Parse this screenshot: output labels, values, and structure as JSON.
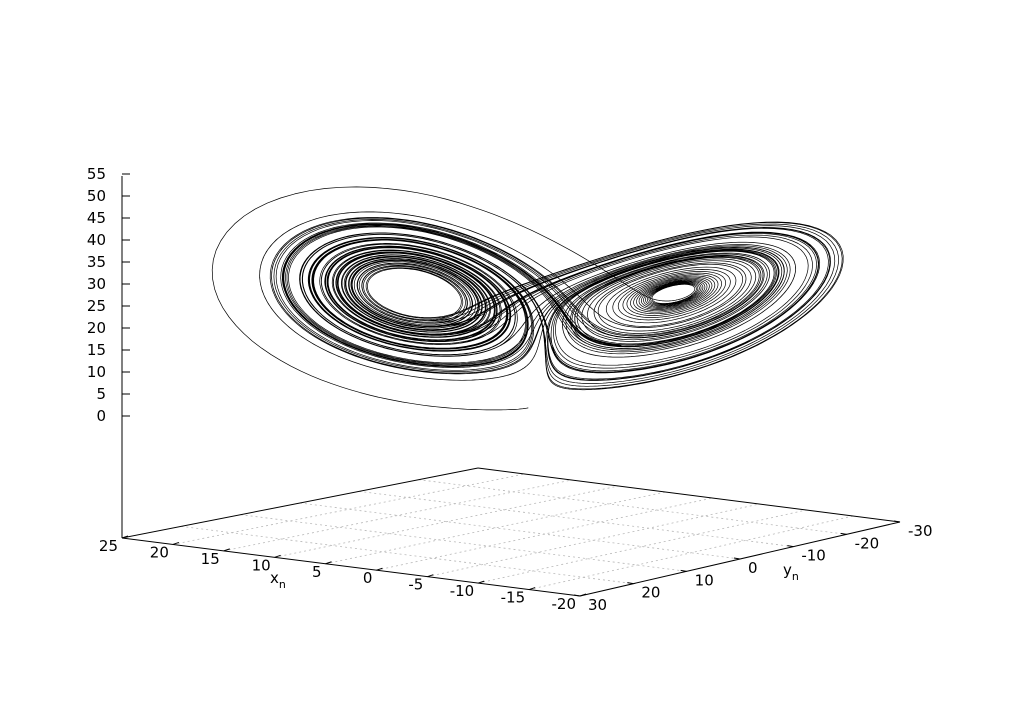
{
  "chart_data": {
    "type": "line",
    "title": "",
    "xlabel": "x",
    "xlabel_sub": "n",
    "ylabel": "y",
    "ylabel_sub": "n",
    "zlabel": "",
    "xlim": [
      -20,
      25
    ],
    "ylim": [
      -30,
      30
    ],
    "zlim": [
      0,
      55
    ],
    "z_ticks": [
      "0",
      "5",
      "10",
      "15",
      "20",
      "25",
      "30",
      "35",
      "40",
      "45",
      "50",
      "55"
    ],
    "x_ticks": [
      "25",
      "20",
      "15",
      "10",
      "5",
      "0",
      "-5",
      "-10",
      "-15",
      "-20"
    ],
    "y_ticks": [
      "30",
      "20",
      "10",
      "0",
      "-10",
      "-20",
      "-30"
    ],
    "grid": true,
    "legend": "none",
    "series": [
      {
        "system": "lorenz",
        "params": {
          "sigma": 10,
          "rho": 28,
          "beta": 2.6667
        },
        "initial": [
          1,
          1,
          1
        ],
        "dt": 0.005,
        "steps": 20000,
        "color": "#000000"
      }
    ]
  }
}
